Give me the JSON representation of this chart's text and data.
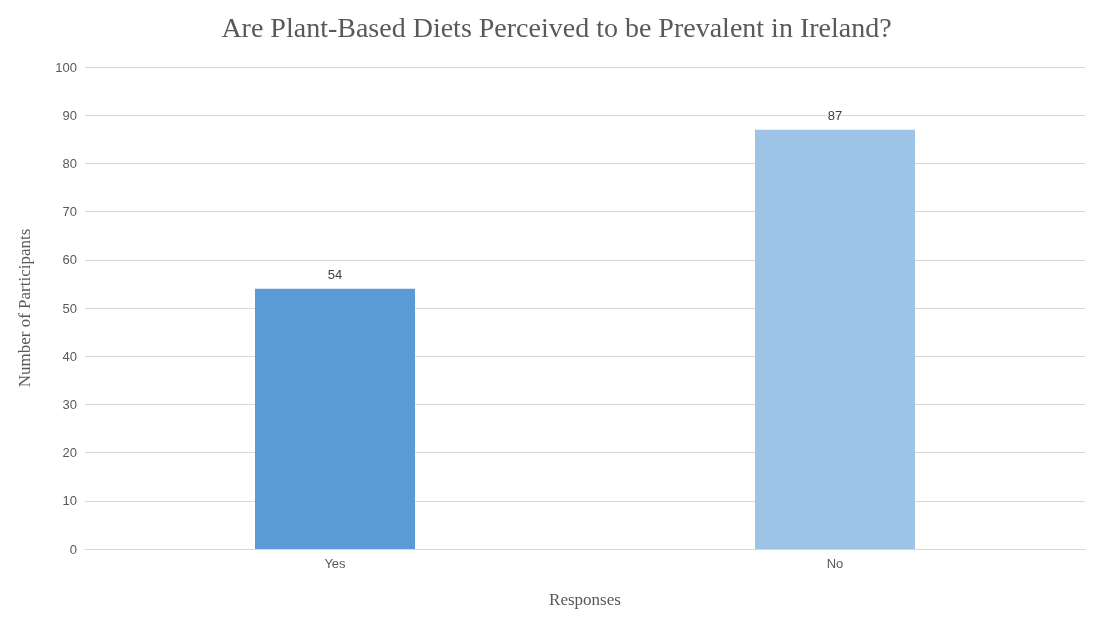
{
  "chart_data": {
    "type": "bar",
    "title": "Are Plant-Based Diets Perceived to be Prevalent in Ireland?",
    "xlabel": "Responses",
    "ylabel": "Number of Participants",
    "categories": [
      "Yes",
      "No"
    ],
    "values": [
      54,
      87
    ],
    "colors": [
      "#5b9bd5",
      "#9dc3e6"
    ],
    "ylim": [
      0,
      100
    ],
    "yticks": [
      0,
      10,
      20,
      30,
      40,
      50,
      60,
      70,
      80,
      90,
      100
    ],
    "grid": "y",
    "data_labels": true
  }
}
